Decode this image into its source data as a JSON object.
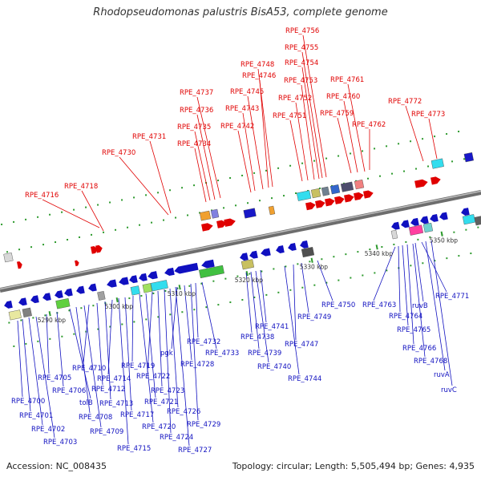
{
  "title": "Rhodopseudomonas palustris BisA53, complete genome",
  "accession": "Accession: NC_008435",
  "footer": "Topology: circular; Length: 5,505,494 bp; Genes: 4,935",
  "colors": {
    "forward": "#e00000",
    "reverse": "#1010c0",
    "backbone": "#8c8c8c"
  },
  "ticks": [
    "5290 kbp",
    "5300 kbp",
    "5310 kbp",
    "5320 kbp",
    "5330 kbp",
    "5340 kbp",
    "5350 kbp"
  ],
  "forward_genes": [
    "RPE_4716",
    "RPE_4718",
    "RPE_4730",
    "RPE_4731",
    "RPE_4734",
    "RPE_4735",
    "RPE_4736",
    "RPE_4737",
    "RPE_4742",
    "RPE_4743",
    "RPE_4745",
    "RPE_4746",
    "RPE_4748",
    "RPE_4751",
    "RPE_4752",
    "RPE_4753",
    "RPE_4754",
    "RPE_4755",
    "RPE_4756",
    "RPE_4759",
    "RPE_4760",
    "RPE_4761",
    "RPE_4762",
    "RPE_4772",
    "RPE_4773"
  ],
  "reverse_genes": [
    "RPE_4700",
    "RPE_4701",
    "RPE_4702",
    "RPE_4703",
    "RPE_4705",
    "RPE_4706",
    "tolB",
    "RPE_4708",
    "RPE_4709",
    "RPE_4710",
    "RPE_4712",
    "RPE_4713",
    "RPE_4714",
    "RPE_4715",
    "RPE_4717",
    "RPE_4719",
    "RPE_4720",
    "RPE_4721",
    "RPE_4722",
    "RPE_4723",
    "RPE_4724",
    "RPE_4726",
    "RPE_4727",
    "pgk",
    "RPE_4728",
    "RPE_4729",
    "RPE_4732",
    "RPE_4733",
    "RPE_4738",
    "RPE_4739",
    "RPE_4740",
    "RPE_4741",
    "RPE_4744",
    "RPE_4747",
    "RPE_4749",
    "RPE_4750",
    "RPE_4763",
    "RPE_4764",
    "RPE_4765",
    "RPE_4766",
    "RPE_4768",
    "RPE_4771",
    "ruvB",
    "ruvA",
    "ruvC"
  ]
}
